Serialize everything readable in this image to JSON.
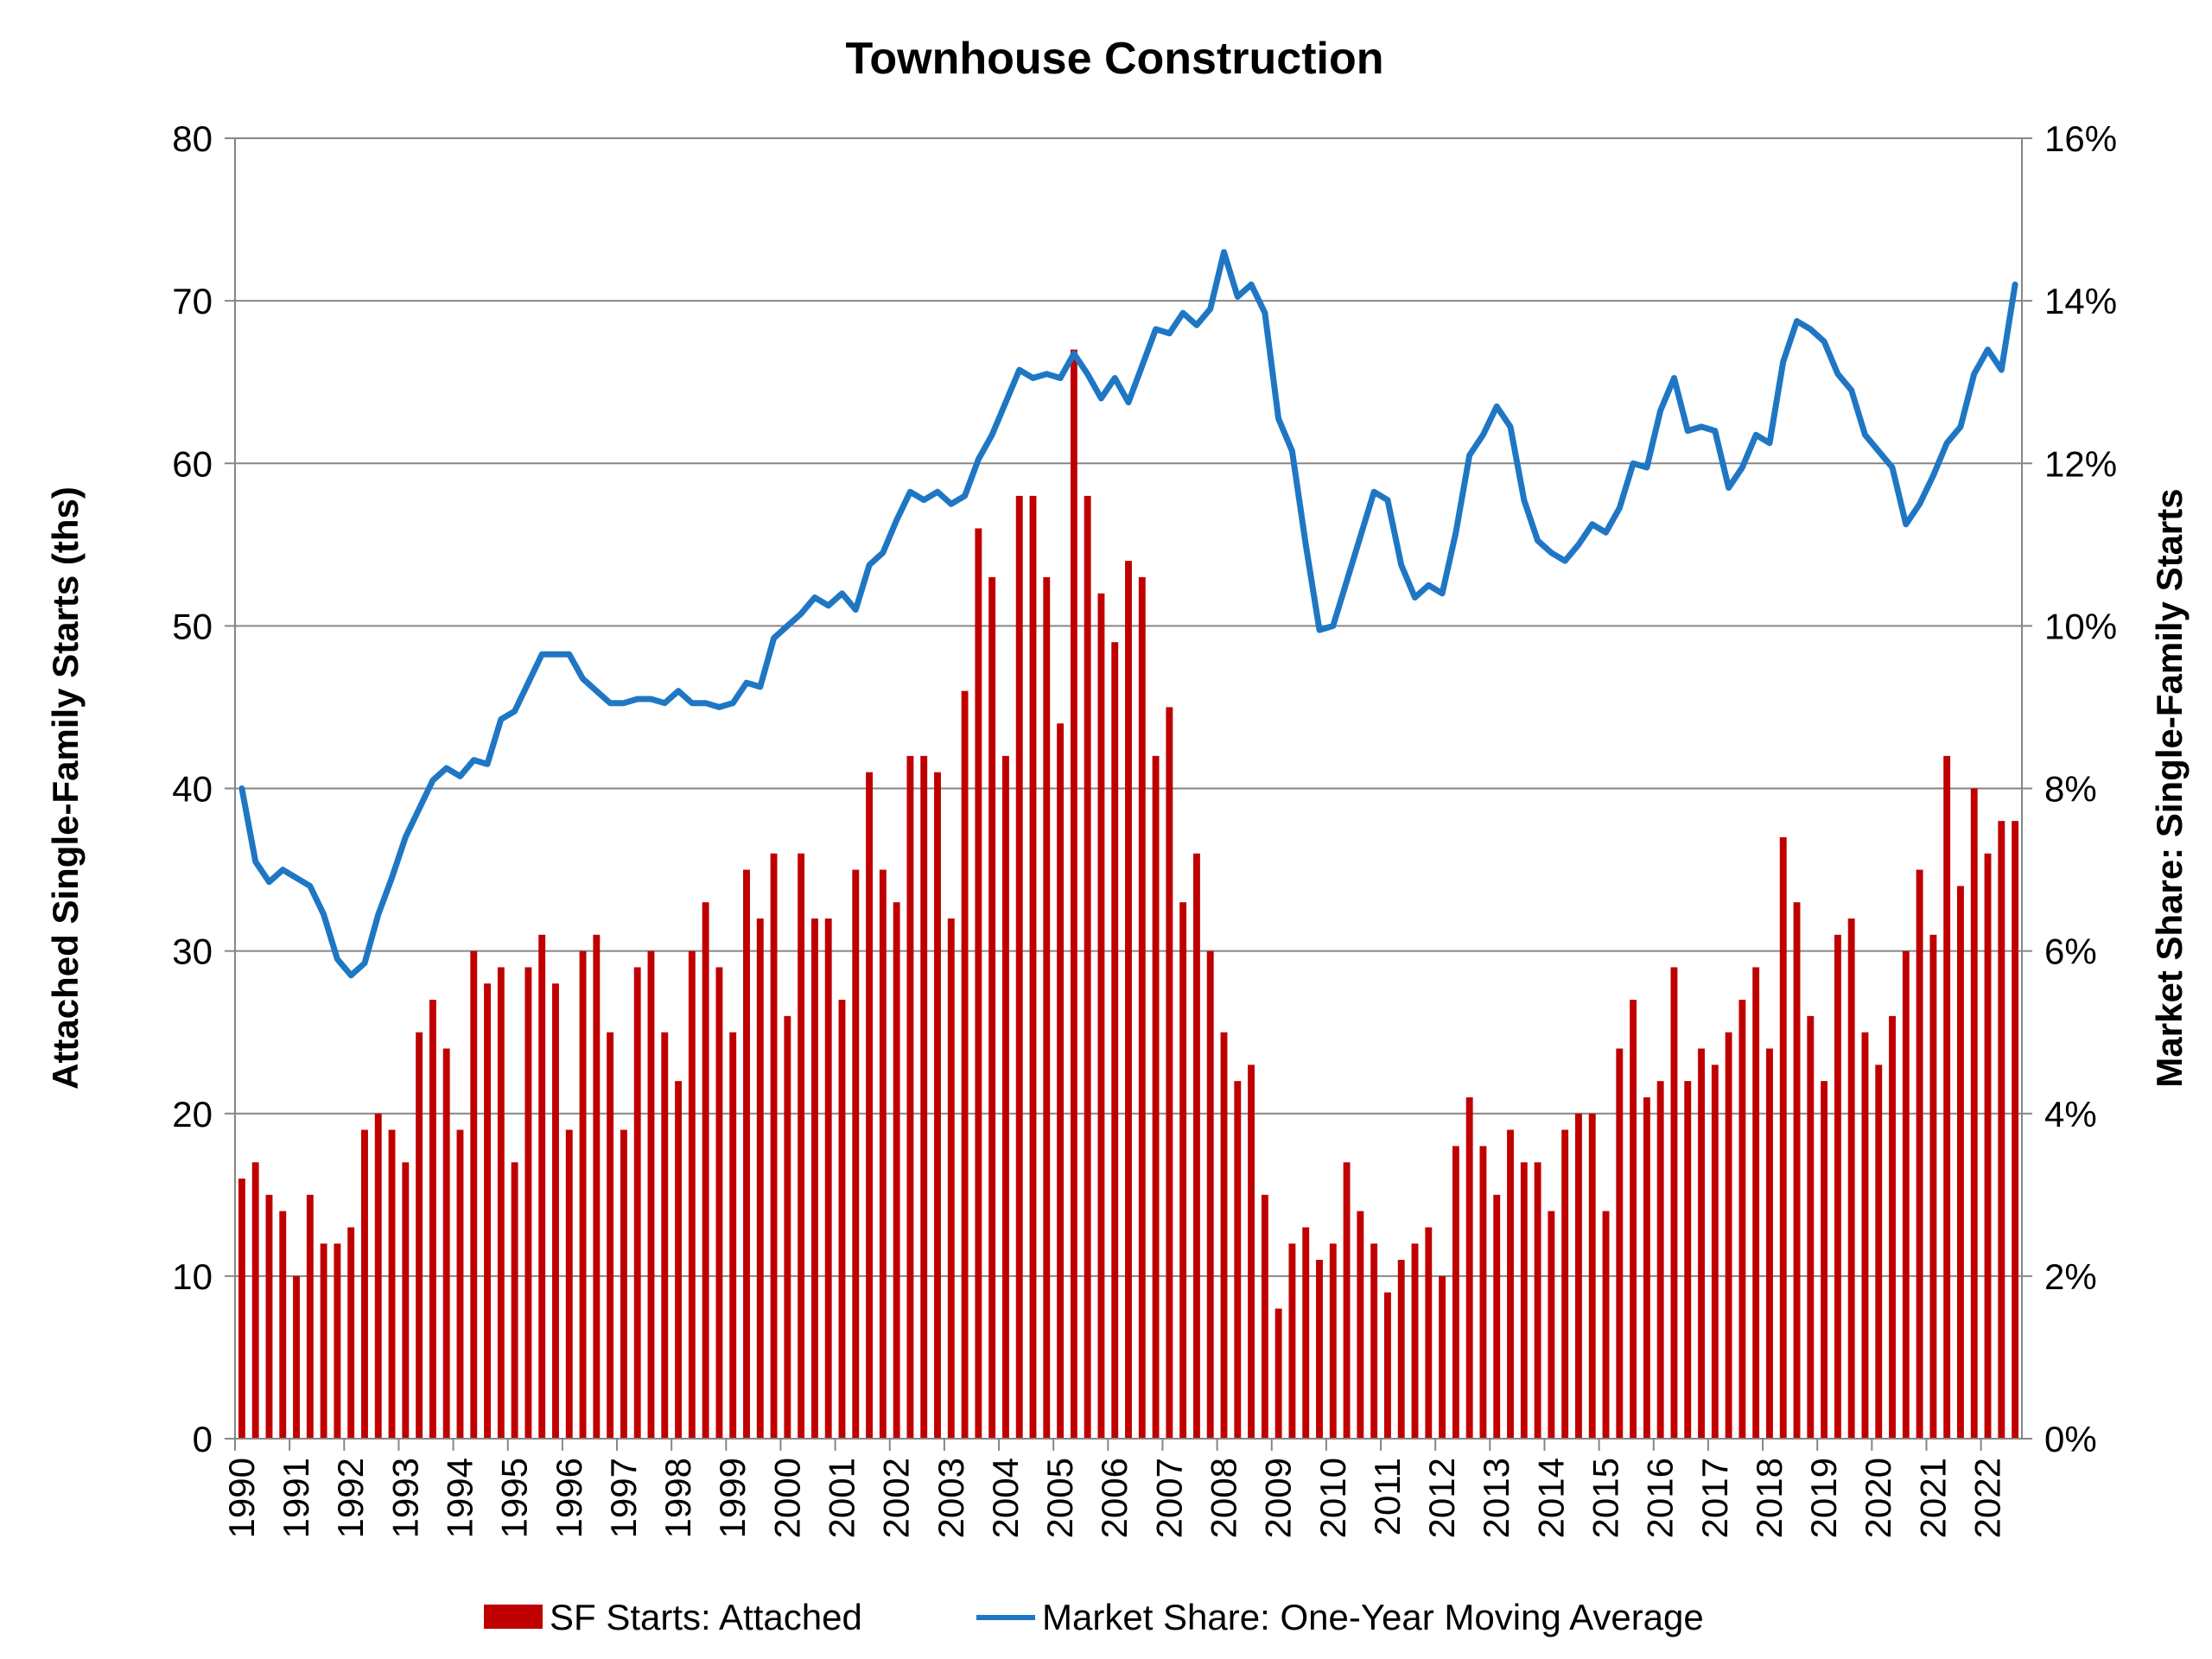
{
  "chart_data": {
    "type": "bar",
    "title": "Townhouse Construction",
    "ylabel": "Attached Single-Family Starts (ths)",
    "y2label": "Market Share: Single-Family Starts",
    "ylim": [
      0,
      80
    ],
    "y2lim": [
      0,
      16
    ],
    "yticks": [
      "0",
      "10",
      "20",
      "30",
      "40",
      "50",
      "60",
      "70",
      "80"
    ],
    "y2ticks": [
      "0%",
      "2%",
      "4%",
      "6%",
      "8%",
      "10%",
      "12%",
      "14%",
      "16%"
    ],
    "xticks": [
      "1990",
      "1991",
      "1992",
      "1993",
      "1994",
      "1995",
      "1996",
      "1997",
      "1998",
      "1999",
      "2000",
      "2001",
      "2002",
      "2003",
      "2004",
      "2005",
      "2006",
      "2007",
      "2008",
      "2009",
      "2010",
      "2011",
      "2012",
      "2013",
      "2014",
      "2015",
      "2016",
      "2017",
      "2018",
      "2019",
      "2020",
      "2021",
      "2022"
    ],
    "grid": "horizontal",
    "legend_position": "bottom",
    "series": [
      {
        "name": "SF Starts: Attached",
        "type": "bar",
        "axis": "left",
        "color": "#c00000",
        "values": [
          16,
          17,
          15,
          14,
          10,
          15,
          12,
          12,
          13,
          19,
          20,
          19,
          17,
          25,
          27,
          24,
          19,
          30,
          28,
          29,
          17,
          29,
          31,
          28,
          19,
          30,
          31,
          25,
          19,
          29,
          30,
          25,
          22,
          30,
          33,
          29,
          25,
          35,
          32,
          36,
          26,
          36,
          32,
          32,
          27,
          35,
          41,
          35,
          33,
          42,
          42,
          41,
          32,
          46,
          56,
          53,
          42,
          58,
          58,
          53,
          44,
          67,
          58,
          52,
          49,
          54,
          53,
          42,
          45,
          33,
          36,
          30,
          25,
          22,
          23,
          15,
          8,
          12,
          13,
          11,
          12,
          17,
          14,
          12,
          9,
          11,
          12,
          13,
          10,
          18,
          21,
          18,
          15,
          19,
          17,
          17,
          14,
          19,
          20,
          20,
          14,
          24,
          27,
          21,
          22,
          29,
          22,
          24,
          23,
          25,
          27,
          29,
          24,
          37,
          33,
          26,
          22,
          31,
          32,
          25,
          23,
          26,
          30,
          35,
          31,
          42,
          34,
          40,
          36,
          38,
          38
        ]
      },
      {
        "name": "Market Share: One-Year Moving Average",
        "type": "line",
        "axis": "right",
        "color": "#1f77c4",
        "values": [
          8.0,
          7.1,
          6.85,
          7.0,
          6.9,
          6.8,
          6.45,
          5.9,
          5.7,
          5.85,
          6.45,
          6.9,
          7.4,
          7.75,
          8.1,
          8.25,
          8.15,
          8.35,
          8.3,
          8.85,
          8.95,
          9.3,
          9.65,
          9.65,
          9.65,
          9.35,
          9.2,
          9.05,
          9.05,
          9.1,
          9.1,
          9.05,
          9.2,
          9.05,
          9.05,
          9.0,
          9.05,
          9.3,
          9.25,
          9.85,
          10.0,
          10.15,
          10.35,
          10.25,
          10.4,
          10.2,
          10.75,
          10.9,
          11.3,
          11.65,
          11.55,
          11.65,
          11.5,
          11.6,
          12.05,
          12.35,
          12.75,
          13.15,
          13.05,
          13.1,
          13.05,
          13.35,
          13.1,
          12.8,
          13.05,
          12.75,
          13.2,
          13.65,
          13.6,
          13.85,
          13.7,
          13.9,
          14.6,
          14.05,
          14.2,
          13.85,
          12.55,
          12.15,
          11.0,
          9.95,
          10.0,
          10.55,
          11.1,
          11.65,
          11.55,
          10.75,
          10.35,
          10.5,
          10.4,
          11.15,
          12.1,
          12.35,
          12.7,
          12.45,
          11.55,
          11.05,
          10.9,
          10.8,
          11.0,
          11.25,
          11.15,
          11.45,
          12.0,
          11.95,
          12.65,
          13.05,
          12.4,
          12.45,
          12.4,
          11.7,
          11.95,
          12.35,
          12.25,
          13.25,
          13.75,
          13.65,
          13.5,
          13.1,
          12.9,
          12.35,
          12.15,
          11.95,
          11.25,
          11.5,
          11.85,
          12.25,
          12.45,
          13.1,
          13.4,
          13.15,
          14.2
        ]
      }
    ]
  }
}
